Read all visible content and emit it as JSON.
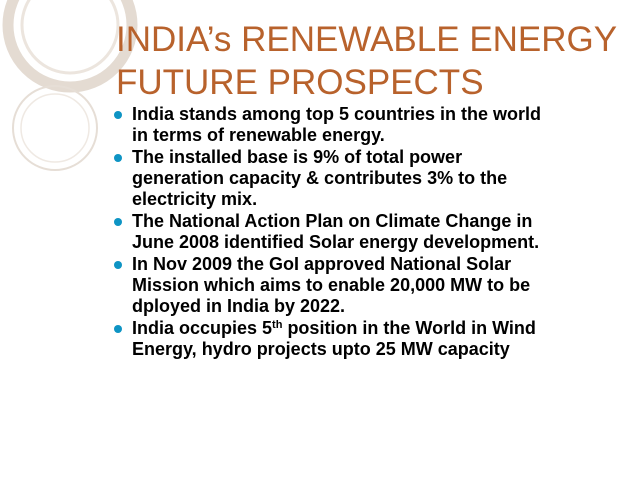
{
  "slide": {
    "title_lines": [
      "INDIA’s RENEWABLE ENERGY",
      "FUTURE PROSPECTS"
    ],
    "accent_color": "#b8622c",
    "bullet_color": "#0e94c4",
    "bullet_icon": "filled-circle-bullet",
    "bullets": [
      {
        "lines": [
          "India stands among top 5 countries in the world",
          "in terms of renewable energy."
        ]
      },
      {
        "lines": [
          "The installed base is 9% of total power",
          "generation capacity & contributes 3% to the",
          "electricity mix."
        ]
      },
      {
        "lines": [
          "The National Action Plan on Climate Change in",
          "June 2008 identified Solar energy development."
        ]
      },
      {
        "lines": [
          "In Nov 2009 the GoI approved National Solar",
          "Mission which aims to enable 20,000 MW to be",
          "dployed in India by 2022."
        ]
      },
      {
        "line1_before": "India occupies 5",
        "line1_sup": "th",
        "line1_after": " position in the World in Wind",
        "line2": "Energy, hydro projects upto 25 MW capacity"
      }
    ]
  }
}
